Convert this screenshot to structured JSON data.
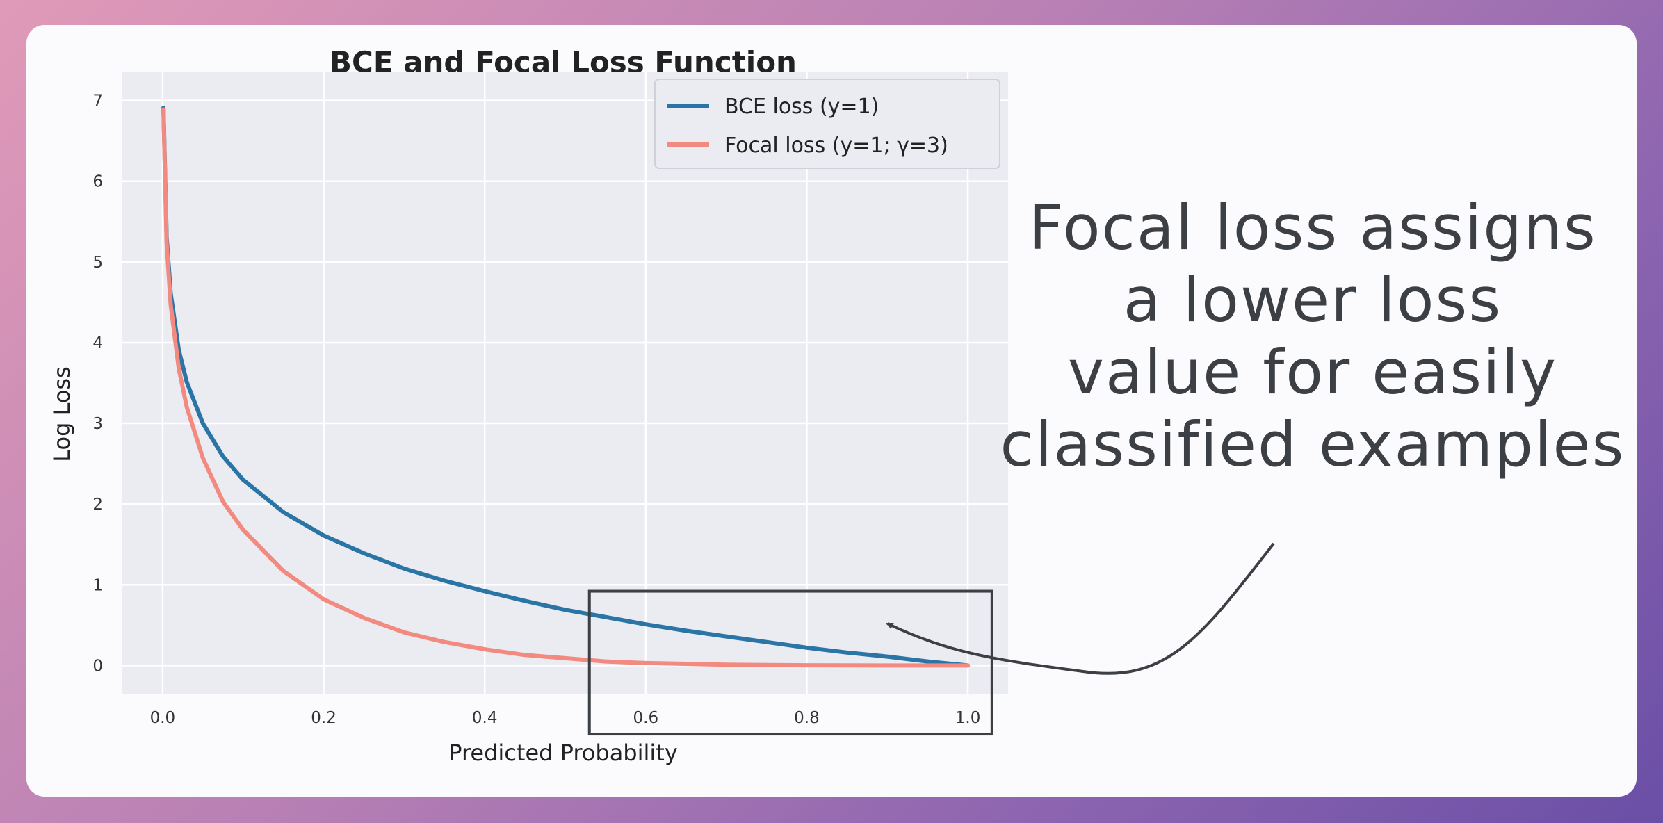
{
  "chart_data": {
    "type": "line",
    "title": "BCE and Focal Loss Function",
    "xlabel": "Predicted Probability",
    "ylabel": "Log Loss",
    "xlim": [
      -0.05,
      1.05
    ],
    "ylim": [
      -0.35,
      7.35
    ],
    "xticks": [
      0.0,
      0.2,
      0.4,
      0.6,
      0.8,
      1.0
    ],
    "xtick_labels": [
      "0.0",
      "0.2",
      "0.4",
      "0.6",
      "0.8",
      "1.0"
    ],
    "yticks": [
      0,
      1,
      2,
      3,
      4,
      5,
      6,
      7
    ],
    "ytick_labels": [
      "0",
      "1",
      "2",
      "3",
      "4",
      "5",
      "6",
      "7"
    ],
    "grid": true,
    "legend_position": "top-right",
    "x": [
      0.001,
      0.005,
      0.01,
      0.02,
      0.03,
      0.05,
      0.075,
      0.1,
      0.15,
      0.2,
      0.25,
      0.3,
      0.35,
      0.4,
      0.45,
      0.5,
      0.55,
      0.6,
      0.65,
      0.7,
      0.75,
      0.8,
      0.85,
      0.9,
      0.95,
      1.0
    ],
    "series": [
      {
        "name": "BCE loss (y=1)",
        "color": "#2a74a6",
        "values": [
          6.91,
          5.3,
          4.61,
          3.91,
          3.51,
          3.0,
          2.59,
          2.3,
          1.9,
          1.61,
          1.39,
          1.2,
          1.05,
          0.92,
          0.8,
          0.69,
          0.6,
          0.51,
          0.43,
          0.36,
          0.29,
          0.22,
          0.16,
          0.11,
          0.05,
          0.0
        ]
      },
      {
        "name": "Focal loss (y=1; γ=3)",
        "color": "#f28a80",
        "values": [
          6.89,
          5.22,
          4.47,
          3.68,
          3.2,
          2.57,
          2.03,
          1.68,
          1.17,
          0.82,
          0.59,
          0.41,
          0.29,
          0.2,
          0.13,
          0.09,
          0.05,
          0.03,
          0.02,
          0.01,
          0.005,
          0.002,
          0.0005,
          0.0001,
          0.0,
          0.0
        ]
      }
    ],
    "annotation": {
      "lines": [
        "Focal loss assigns",
        "a lower loss",
        "value for easily",
        "classified examples"
      ],
      "highlight_box_x_range": [
        0.53,
        1.03
      ],
      "highlight_box_y_range": [
        -0.85,
        0.92
      ],
      "arrow_target": [
        0.9,
        0.52
      ],
      "color": "#3c3f44"
    }
  }
}
